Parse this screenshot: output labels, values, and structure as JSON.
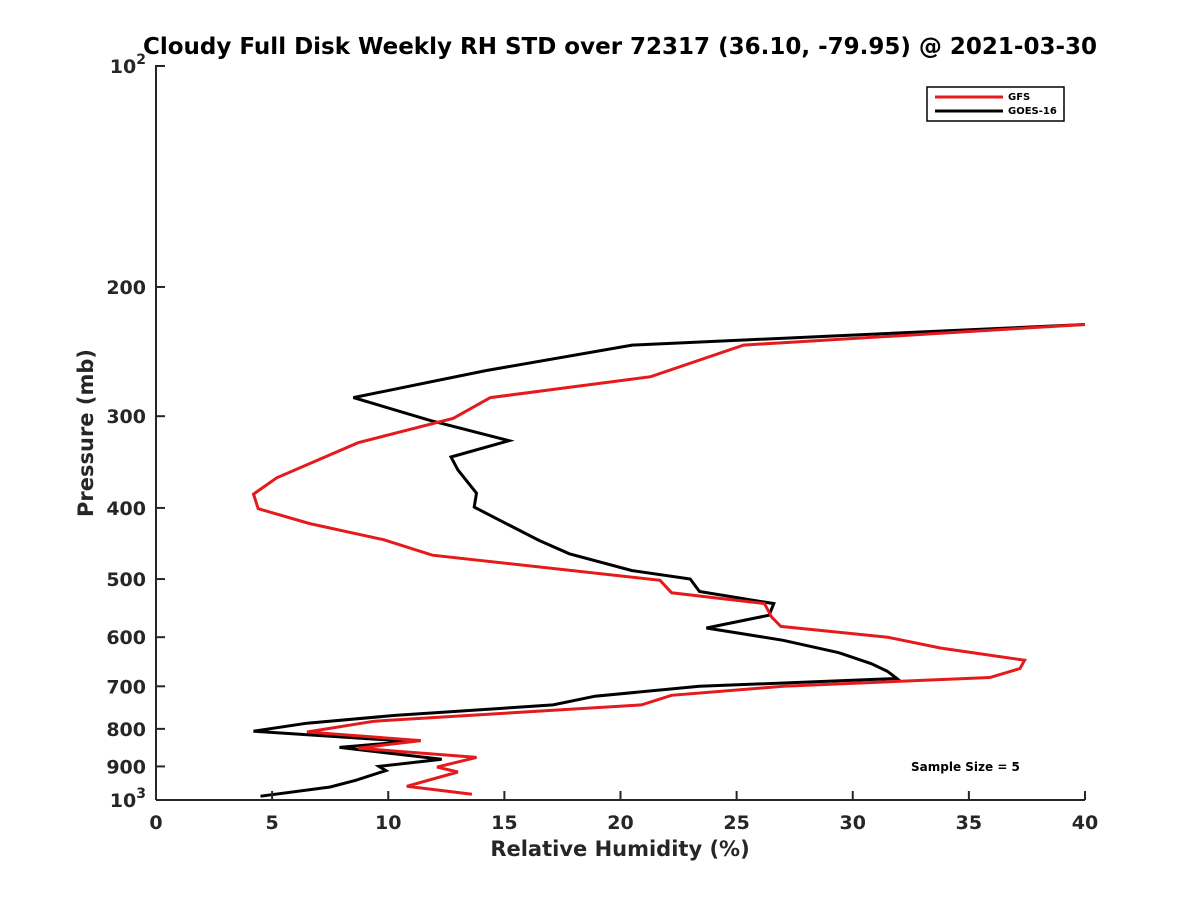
{
  "chart_data": {
    "type": "line",
    "title": "Cloudy Full Disk Weekly RH STD over 72317 (36.10, -79.95) @ 2021-03-30",
    "xlabel": "Relative Humidity (%)",
    "ylabel": "Pressure (mb)",
    "xlim": [
      0,
      40
    ],
    "ylim": [
      100,
      1000
    ],
    "y_scale": "log",
    "y_reversed": true,
    "grid": false,
    "legend_position": "top-right",
    "x_ticks": [
      "0",
      "5",
      "10",
      "15",
      "20",
      "25",
      "30",
      "35",
      "40"
    ],
    "y_ticks": [
      {
        "value": 100,
        "base": "10",
        "exp": "2"
      },
      {
        "value": 200,
        "label": "200"
      },
      {
        "value": 300,
        "label": "300"
      },
      {
        "value": 400,
        "label": "400"
      },
      {
        "value": 500,
        "label": "500"
      },
      {
        "value": 600,
        "label": "600"
      },
      {
        "value": 700,
        "label": "700"
      },
      {
        "value": 800,
        "label": "800"
      },
      {
        "value": 900,
        "label": "900"
      },
      {
        "value": 1000,
        "base": "10",
        "exp": "3"
      }
    ],
    "annotation": "Sample Size = 5",
    "series": [
      {
        "name": "GFS",
        "color": "#e41a1c",
        "points": [
          {
            "x": 40.0,
            "y": 225
          },
          {
            "x": 25.3,
            "y": 240
          },
          {
            "x": 21.3,
            "y": 265
          },
          {
            "x": 14.4,
            "y": 283
          },
          {
            "x": 12.8,
            "y": 302
          },
          {
            "x": 8.7,
            "y": 326
          },
          {
            "x": 7.0,
            "y": 344
          },
          {
            "x": 5.2,
            "y": 364
          },
          {
            "x": 4.2,
            "y": 383
          },
          {
            "x": 4.4,
            "y": 401
          },
          {
            "x": 6.6,
            "y": 420
          },
          {
            "x": 9.8,
            "y": 442
          },
          {
            "x": 11.9,
            "y": 464
          },
          {
            "x": 21.7,
            "y": 502
          },
          {
            "x": 22.2,
            "y": 522
          },
          {
            "x": 26.2,
            "y": 540
          },
          {
            "x": 26.5,
            "y": 563
          },
          {
            "x": 26.9,
            "y": 580
          },
          {
            "x": 31.5,
            "y": 600
          },
          {
            "x": 33.8,
            "y": 621
          },
          {
            "x": 37.4,
            "y": 645
          },
          {
            "x": 37.2,
            "y": 662
          },
          {
            "x": 35.9,
            "y": 681
          },
          {
            "x": 27.0,
            "y": 700
          },
          {
            "x": 22.2,
            "y": 720
          },
          {
            "x": 20.9,
            "y": 742
          },
          {
            "x": 9.4,
            "y": 781
          },
          {
            "x": 6.5,
            "y": 808
          },
          {
            "x": 11.4,
            "y": 830
          },
          {
            "x": 8.7,
            "y": 850
          },
          {
            "x": 13.8,
            "y": 875
          },
          {
            "x": 12.1,
            "y": 902
          },
          {
            "x": 13.0,
            "y": 916
          },
          {
            "x": 10.8,
            "y": 958
          },
          {
            "x": 13.6,
            "y": 982
          }
        ]
      },
      {
        "name": "GOES-16",
        "color": "#000000",
        "points": [
          {
            "x": 40.0,
            "y": 225
          },
          {
            "x": 20.5,
            "y": 240
          },
          {
            "x": 14.2,
            "y": 260
          },
          {
            "x": 8.5,
            "y": 283
          },
          {
            "x": 11.8,
            "y": 304
          },
          {
            "x": 15.2,
            "y": 324
          },
          {
            "x": 12.7,
            "y": 341
          },
          {
            "x": 13.0,
            "y": 355
          },
          {
            "x": 13.3,
            "y": 365
          },
          {
            "x": 13.8,
            "y": 382
          },
          {
            "x": 13.7,
            "y": 399
          },
          {
            "x": 15.2,
            "y": 422
          },
          {
            "x": 16.5,
            "y": 443
          },
          {
            "x": 17.8,
            "y": 462
          },
          {
            "x": 20.5,
            "y": 487
          },
          {
            "x": 23.0,
            "y": 500
          },
          {
            "x": 23.4,
            "y": 520
          },
          {
            "x": 26.6,
            "y": 540
          },
          {
            "x": 26.4,
            "y": 560
          },
          {
            "x": 23.7,
            "y": 583
          },
          {
            "x": 27.0,
            "y": 606
          },
          {
            "x": 29.4,
            "y": 630
          },
          {
            "x": 30.8,
            "y": 652
          },
          {
            "x": 31.5,
            "y": 668
          },
          {
            "x": 31.9,
            "y": 683
          },
          {
            "x": 23.4,
            "y": 700
          },
          {
            "x": 18.9,
            "y": 722
          },
          {
            "x": 17.1,
            "y": 742
          },
          {
            "x": 10.3,
            "y": 767
          },
          {
            "x": 6.5,
            "y": 786
          },
          {
            "x": 4.2,
            "y": 806
          },
          {
            "x": 10.9,
            "y": 832
          },
          {
            "x": 7.9,
            "y": 848
          },
          {
            "x": 12.3,
            "y": 880
          },
          {
            "x": 9.6,
            "y": 900
          },
          {
            "x": 9.9,
            "y": 912
          },
          {
            "x": 8.6,
            "y": 940
          },
          {
            "x": 7.5,
            "y": 960
          },
          {
            "x": 4.5,
            "y": 988
          }
        ]
      }
    ]
  }
}
